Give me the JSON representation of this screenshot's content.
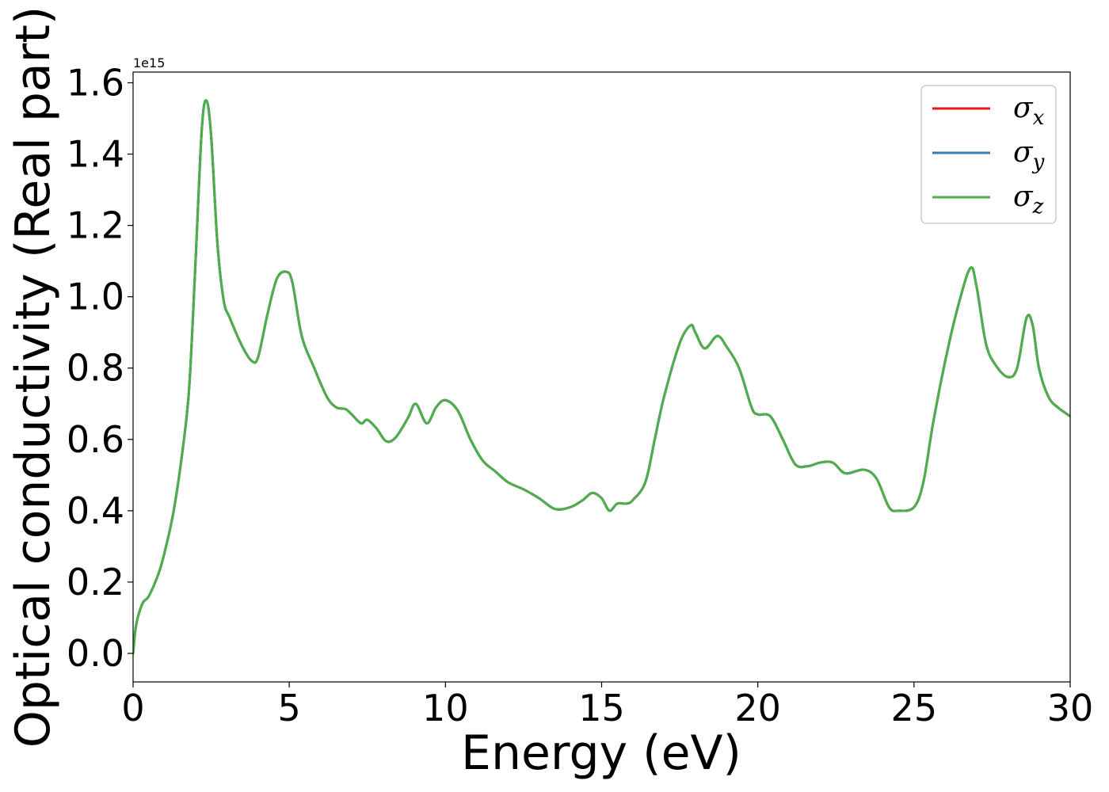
{
  "chart_data": {
    "type": "line",
    "xlabel": "Energy (eV)",
    "ylabel": "Optical conductivity (Real part)",
    "y_offset_text": "1e15",
    "xlim": [
      0,
      30
    ],
    "ylim": [
      -0.08,
      1.63
    ],
    "xticks": [
      0,
      5,
      10,
      15,
      20,
      25,
      30
    ],
    "xtick_labels": [
      "0",
      "5",
      "10",
      "15",
      "20",
      "25",
      "30"
    ],
    "yticks": [
      0.0,
      0.2,
      0.4,
      0.6,
      0.8,
      1.0,
      1.2,
      1.4,
      1.6
    ],
    "ytick_labels": [
      "0.0",
      "0.2",
      "0.4",
      "0.6",
      "0.8",
      "1.0",
      "1.2",
      "1.4",
      "1.6"
    ],
    "grid": false,
    "legend_position": "top-right",
    "x": [
      0,
      0.1,
      0.3,
      0.5,
      0.8,
      1.0,
      1.3,
      1.6,
      1.8,
      2.0,
      2.2,
      2.35,
      2.5,
      2.7,
      2.9,
      3.1,
      3.5,
      3.8,
      4.0,
      4.3,
      4.6,
      4.9,
      5.1,
      5.4,
      5.8,
      6.2,
      6.5,
      6.8,
      7.0,
      7.3,
      7.5,
      7.8,
      8.1,
      8.4,
      8.8,
      9.05,
      9.4,
      9.7,
      10.0,
      10.4,
      10.8,
      11.2,
      11.6,
      12.0,
      12.5,
      13.0,
      13.5,
      14.0,
      14.4,
      14.7,
      15.0,
      15.25,
      15.5,
      15.8,
      16.0,
      16.4,
      16.7,
      17.0,
      17.5,
      17.85,
      18.0,
      18.3,
      18.7,
      19.0,
      19.4,
      19.8,
      20.0,
      20.4,
      20.8,
      21.2,
      21.6,
      22.0,
      22.4,
      22.8,
      23.4,
      23.8,
      24.2,
      24.5,
      25.0,
      25.3,
      25.6,
      26.0,
      26.4,
      26.8,
      27.0,
      27.3,
      27.6,
      28.0,
      28.3,
      28.6,
      28.8,
      29.0,
      29.3,
      29.6,
      30.0
    ],
    "series": [
      {
        "name": "σx",
        "label_base": "σ",
        "label_sub": "x",
        "color": "#e41a1c",
        "values": [
          0.0,
          0.08,
          0.14,
          0.16,
          0.22,
          0.28,
          0.4,
          0.58,
          0.75,
          1.1,
          1.47,
          1.55,
          1.45,
          1.15,
          0.99,
          0.94,
          0.86,
          0.82,
          0.83,
          0.95,
          1.05,
          1.07,
          1.04,
          0.89,
          0.8,
          0.72,
          0.69,
          0.685,
          0.67,
          0.645,
          0.655,
          0.63,
          0.595,
          0.605,
          0.66,
          0.7,
          0.645,
          0.69,
          0.71,
          0.68,
          0.6,
          0.54,
          0.51,
          0.48,
          0.46,
          0.435,
          0.405,
          0.41,
          0.43,
          0.45,
          0.435,
          0.4,
          0.42,
          0.42,
          0.43,
          0.48,
          0.6,
          0.72,
          0.87,
          0.92,
          0.9,
          0.855,
          0.89,
          0.86,
          0.8,
          0.69,
          0.67,
          0.665,
          0.6,
          0.53,
          0.525,
          0.535,
          0.535,
          0.505,
          0.515,
          0.49,
          0.41,
          0.4,
          0.41,
          0.48,
          0.64,
          0.82,
          0.97,
          1.08,
          1.03,
          0.87,
          0.81,
          0.775,
          0.8,
          0.94,
          0.92,
          0.8,
          0.72,
          0.69,
          0.665
        ]
      },
      {
        "name": "σy",
        "label_base": "σ",
        "label_sub": "y",
        "color": "#377eb8",
        "values": [
          0.0,
          0.08,
          0.14,
          0.16,
          0.22,
          0.28,
          0.4,
          0.58,
          0.75,
          1.1,
          1.47,
          1.55,
          1.45,
          1.15,
          0.99,
          0.94,
          0.86,
          0.82,
          0.83,
          0.95,
          1.05,
          1.07,
          1.04,
          0.89,
          0.8,
          0.72,
          0.69,
          0.685,
          0.67,
          0.645,
          0.655,
          0.63,
          0.595,
          0.605,
          0.66,
          0.7,
          0.645,
          0.69,
          0.71,
          0.68,
          0.6,
          0.54,
          0.51,
          0.48,
          0.46,
          0.435,
          0.405,
          0.41,
          0.43,
          0.45,
          0.435,
          0.4,
          0.42,
          0.42,
          0.43,
          0.48,
          0.6,
          0.72,
          0.87,
          0.92,
          0.9,
          0.855,
          0.89,
          0.86,
          0.8,
          0.69,
          0.67,
          0.665,
          0.6,
          0.53,
          0.525,
          0.535,
          0.535,
          0.505,
          0.515,
          0.49,
          0.41,
          0.4,
          0.41,
          0.48,
          0.64,
          0.82,
          0.97,
          1.08,
          1.03,
          0.87,
          0.81,
          0.775,
          0.8,
          0.94,
          0.92,
          0.8,
          0.72,
          0.69,
          0.665
        ]
      },
      {
        "name": "σz",
        "label_base": "σ",
        "label_sub": "z",
        "color": "#4daf4a",
        "values": [
          0.0,
          0.08,
          0.14,
          0.16,
          0.22,
          0.28,
          0.4,
          0.58,
          0.75,
          1.1,
          1.47,
          1.55,
          1.45,
          1.15,
          0.99,
          0.94,
          0.86,
          0.82,
          0.83,
          0.95,
          1.05,
          1.07,
          1.04,
          0.89,
          0.8,
          0.72,
          0.69,
          0.685,
          0.67,
          0.645,
          0.655,
          0.63,
          0.595,
          0.605,
          0.66,
          0.7,
          0.645,
          0.69,
          0.71,
          0.68,
          0.6,
          0.54,
          0.51,
          0.48,
          0.46,
          0.435,
          0.405,
          0.41,
          0.43,
          0.45,
          0.435,
          0.4,
          0.42,
          0.42,
          0.43,
          0.48,
          0.6,
          0.72,
          0.87,
          0.92,
          0.9,
          0.855,
          0.89,
          0.86,
          0.8,
          0.69,
          0.67,
          0.665,
          0.6,
          0.53,
          0.525,
          0.535,
          0.535,
          0.505,
          0.515,
          0.49,
          0.41,
          0.4,
          0.41,
          0.48,
          0.64,
          0.82,
          0.97,
          1.08,
          1.03,
          0.87,
          0.81,
          0.775,
          0.8,
          0.94,
          0.92,
          0.8,
          0.72,
          0.69,
          0.665
        ]
      }
    ]
  }
}
